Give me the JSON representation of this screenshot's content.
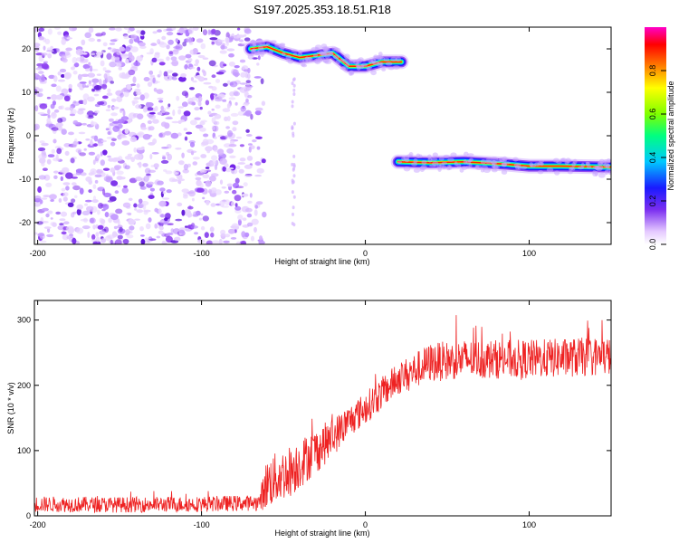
{
  "title": "S197.2025.353.18.51.R18",
  "chart_data": [
    {
      "type": "heatmap",
      "xlabel": "Height of straight line (km)",
      "ylabel": "Frequency (Hz)",
      "xlim": [
        -202,
        150
      ],
      "ylim": [
        -25,
        25
      ],
      "xticks": [
        -200,
        -100,
        0,
        100
      ],
      "yticks": [
        -20,
        -10,
        0,
        10,
        20
      ],
      "noise_region_x": [
        -202,
        -70
      ],
      "tracks": [
        {
          "name": "upper",
          "x": [
            -70,
            -60,
            -50,
            -40,
            -30,
            -20,
            -10,
            0,
            10,
            22
          ],
          "y": [
            20,
            20.5,
            19,
            18,
            18.5,
            19,
            16,
            16,
            17,
            17
          ]
        },
        {
          "name": "lower",
          "x": [
            20,
            40,
            60,
            84,
            100,
            120,
            150
          ],
          "y": [
            -6,
            -6.2,
            -6,
            -6.5,
            -7,
            -7,
            -7.2
          ]
        }
      ],
      "colorbar": {
        "label": "Normalized spectral amplitude",
        "range": [
          0,
          1
        ],
        "ticks": [
          "0.0",
          "0.2",
          "0.4",
          "0.6",
          "0.8"
        ]
      }
    },
    {
      "type": "line",
      "xlabel": "Height of straight line (km)",
      "ylabel": "SNR (10 * v/v)",
      "xlim": [
        -202,
        150
      ],
      "ylim": [
        0,
        330
      ],
      "xticks": [
        -200,
        -100,
        0,
        100
      ],
      "yticks": [
        0,
        100,
        200,
        300
      ],
      "series": [
        {
          "name": "SNR",
          "color": "#ee2222",
          "x": [
            -202,
            -150,
            -100,
            -65,
            -60,
            -45,
            -30,
            -20,
            -10,
            0,
            20,
            40,
            60,
            80,
            100,
            120,
            150
          ],
          "y": [
            18,
            17,
            18,
            20,
            50,
            70,
            100,
            120,
            145,
            165,
            210,
            235,
            240,
            240,
            240,
            242,
            245
          ],
          "noise_amplitude": [
            12,
            12,
            12,
            12,
            40,
            40,
            35,
            30,
            25,
            25,
            25,
            30,
            30,
            30,
            30,
            30,
            30
          ]
        }
      ]
    }
  ]
}
